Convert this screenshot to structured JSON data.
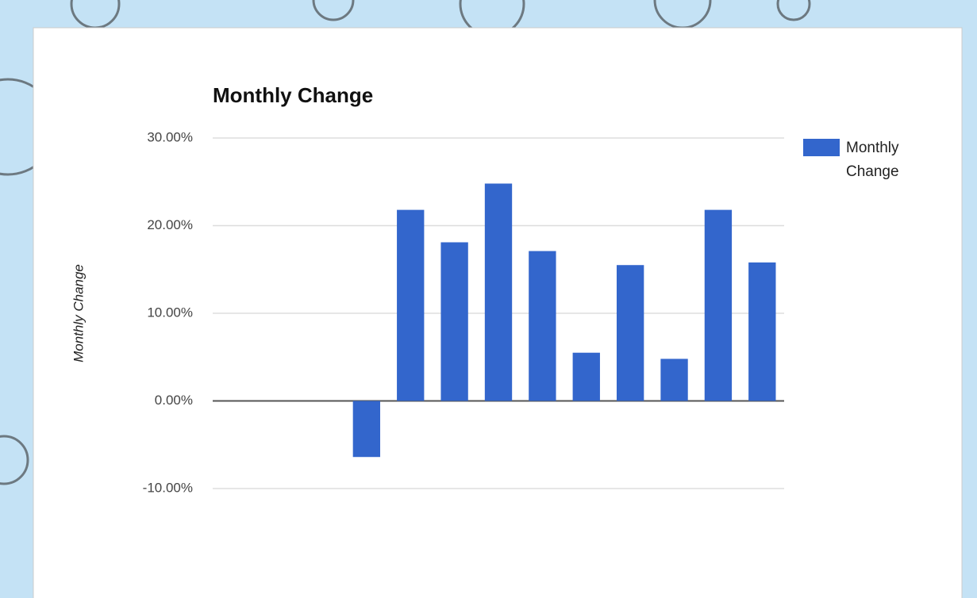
{
  "chart_data": {
    "type": "bar",
    "title": "Monthly Change",
    "y_label": "Monthly Change",
    "categories": [
      null,
      null,
      null,
      null,
      null,
      null,
      null,
      null,
      null,
      null,
      null,
      null,
      null
    ],
    "series": [
      {
        "name": "Monthly Change",
        "color": "#3366cc",
        "values": [
          null,
          null,
          null,
          -6.4,
          21.8,
          18.1,
          24.8,
          17.1,
          5.5,
          15.5,
          4.8,
          21.8,
          15.8
        ]
      }
    ],
    "ylim": [
      -10,
      30
    ],
    "yticks": [
      {
        "value": -10,
        "label": "-10.00%"
      },
      {
        "value": 0,
        "label": "0.00%"
      },
      {
        "value": 10,
        "label": "10.00%"
      },
      {
        "value": 20,
        "label": "20.00%"
      },
      {
        "value": 30,
        "label": "30.00%"
      }
    ],
    "grid": true,
    "legend": "right"
  }
}
